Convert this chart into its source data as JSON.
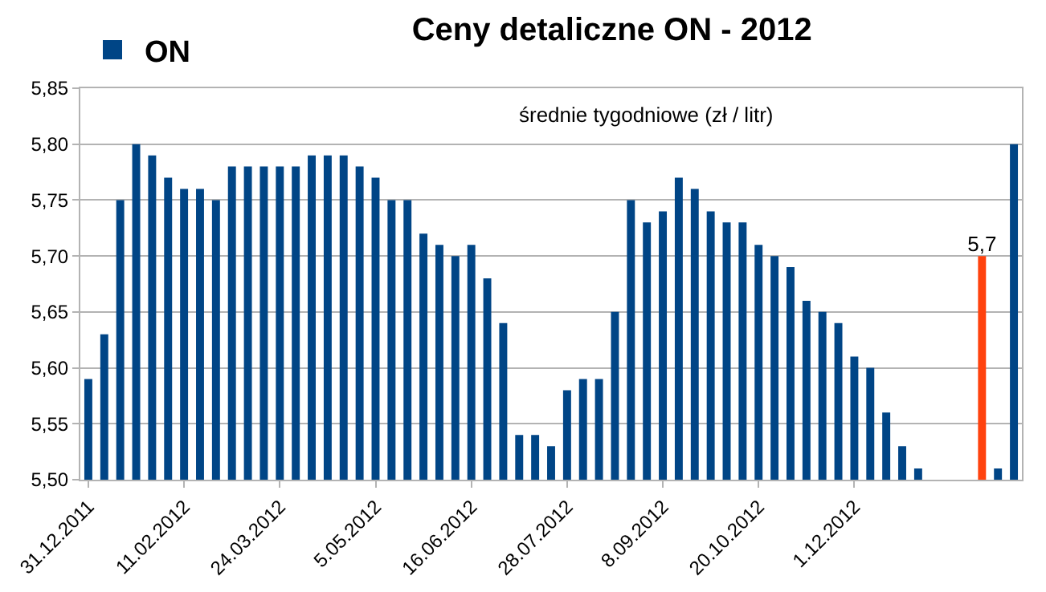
{
  "chart_data": {
    "type": "bar",
    "title": "Ceny detaliczne ON - 2012",
    "subtitle": "średnie tygodniowe (zł / litr)",
    "categories": [
      "31.12.2011",
      null,
      null,
      null,
      null,
      null,
      "11.02.2012",
      null,
      null,
      null,
      null,
      null,
      "24.03.2012",
      null,
      null,
      null,
      null,
      null,
      "5.05.2012",
      null,
      null,
      null,
      null,
      null,
      "16.06.2012",
      null,
      null,
      null,
      null,
      null,
      "28.07.2012",
      null,
      null,
      null,
      null,
      null,
      "8.09.2012",
      null,
      null,
      null,
      null,
      null,
      "20.10.2012",
      null,
      null,
      null,
      null,
      null,
      "1.12.2012",
      null,
      null,
      null,
      null,
      null,
      null,
      null,
      null,
      null,
      null
    ],
    "series": [
      {
        "name": "ON",
        "color": "#004586",
        "values": [
          5.59,
          5.63,
          5.75,
          5.8,
          5.79,
          5.77,
          5.76,
          5.76,
          5.75,
          5.78,
          5.78,
          5.78,
          5.78,
          5.78,
          5.79,
          5.79,
          5.79,
          5.78,
          5.77,
          5.75,
          5.75,
          5.72,
          5.71,
          5.7,
          5.71,
          5.68,
          5.64,
          5.54,
          5.54,
          5.53,
          5.58,
          5.59,
          5.59,
          5.65,
          5.75,
          5.73,
          5.74,
          5.77,
          5.76,
          5.74,
          5.73,
          5.73,
          5.71,
          5.7,
          5.69,
          5.66,
          5.65,
          5.64,
          5.61,
          5.6,
          5.56,
          5.53,
          5.51,
          null,
          null,
          null,
          5.7,
          5.51,
          5.8
        ],
        "colors": [
          "#004586",
          "#004586",
          "#004586",
          "#004586",
          "#004586",
          "#004586",
          "#004586",
          "#004586",
          "#004586",
          "#004586",
          "#004586",
          "#004586",
          "#004586",
          "#004586",
          "#004586",
          "#004586",
          "#004586",
          "#004586",
          "#004586",
          "#004586",
          "#004586",
          "#004586",
          "#004586",
          "#004586",
          "#004586",
          "#004586",
          "#004586",
          "#004586",
          "#004586",
          "#004586",
          "#004586",
          "#004586",
          "#004586",
          "#004586",
          "#004586",
          "#004586",
          "#004586",
          "#004586",
          "#004586",
          "#004586",
          "#004586",
          "#004586",
          "#004586",
          "#004586",
          "#004586",
          "#004586",
          "#004586",
          "#004586",
          "#004586",
          "#004586",
          "#004586",
          "#004586",
          "#004586",
          "#004586",
          "#004586",
          "#004586",
          "#ff420e",
          "#004586",
          "#004586"
        ],
        "value_labels": [
          null,
          null,
          null,
          null,
          null,
          null,
          null,
          null,
          null,
          null,
          null,
          null,
          null,
          null,
          null,
          null,
          null,
          null,
          null,
          null,
          null,
          null,
          null,
          null,
          null,
          null,
          null,
          null,
          null,
          null,
          null,
          null,
          null,
          null,
          null,
          null,
          null,
          null,
          null,
          null,
          null,
          null,
          null,
          null,
          null,
          null,
          null,
          null,
          null,
          null,
          null,
          null,
          null,
          null,
          null,
          null,
          "5,7",
          null,
          null
        ]
      }
    ],
    "ylim": [
      5.5,
      5.85
    ],
    "yticks": [
      {
        "value": 5.5,
        "label": "5,50"
      },
      {
        "value": 5.55,
        "label": "5,55"
      },
      {
        "value": 5.6,
        "label": "5,60"
      },
      {
        "value": 5.65,
        "label": "5,65"
      },
      {
        "value": 5.7,
        "label": "5,70"
      },
      {
        "value": 5.75,
        "label": "5,75"
      },
      {
        "value": 5.8,
        "label": "5,80"
      },
      {
        "value": 5.85,
        "label": "5,85"
      }
    ],
    "grid": "y",
    "legend": "top left"
  }
}
